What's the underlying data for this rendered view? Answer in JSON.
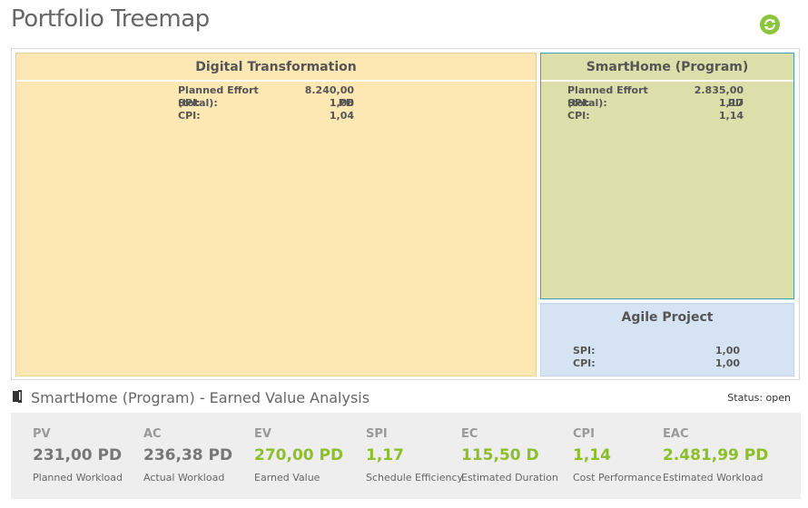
{
  "page": {
    "title": "Portfolio Treemap"
  },
  "treemap": {
    "tiles": [
      {
        "title": "Digital Transformation",
        "rows": [
          {
            "label": "Planned Effort (total):",
            "value": "8.240,00 PD"
          },
          {
            "label": "SPI:",
            "value": "1,08"
          },
          {
            "label": "CPI:",
            "value": "1,04"
          }
        ],
        "color": "#fde8b4"
      },
      {
        "title": "SmartHome (Program)",
        "rows": [
          {
            "label": "Planned Effort (total):",
            "value": "2.835,00 PD"
          },
          {
            "label": "SPI:",
            "value": "1,17"
          },
          {
            "label": "CPI:",
            "value": "1,14"
          }
        ],
        "color": "#dcdfaa",
        "selected": true
      },
      {
        "title": "Agile Project",
        "rows": [
          {
            "label": "SPI:",
            "value": "1,00"
          },
          {
            "label": "CPI:",
            "value": "1,00"
          }
        ],
        "color": "#d5e3f2"
      }
    ]
  },
  "analysis": {
    "title": "SmartHome (Program) - Earned Value Analysis",
    "status_label": "Status:",
    "status_value": "open",
    "kpis": [
      {
        "abbr": "PV",
        "value": "231,00 PD",
        "desc": "Planned Workload",
        "tone": "gray"
      },
      {
        "abbr": "AC",
        "value": "236,38 PD",
        "desc": "Actual Workload",
        "tone": "gray"
      },
      {
        "abbr": "EV",
        "value": "270,00 PD",
        "desc": "Earned Value",
        "tone": "green"
      },
      {
        "abbr": "SPI",
        "value": "1,17",
        "desc": "Schedule Efficiency",
        "tone": "green"
      },
      {
        "abbr": "EC",
        "value": "115,50 D",
        "desc": "Estimated Duration",
        "tone": "green"
      },
      {
        "abbr": "CPI",
        "value": "1,14",
        "desc": "Cost Performance",
        "tone": "green"
      },
      {
        "abbr": "EAC",
        "value": "2.481,99 PD",
        "desc": "Estimated Workload",
        "tone": "green"
      }
    ]
  },
  "icons": {
    "refresh": "refresh-icon",
    "section": "book-icon"
  },
  "colors": {
    "accent_green": "#8cbf2b",
    "selected_border": "#3fa1b1"
  }
}
